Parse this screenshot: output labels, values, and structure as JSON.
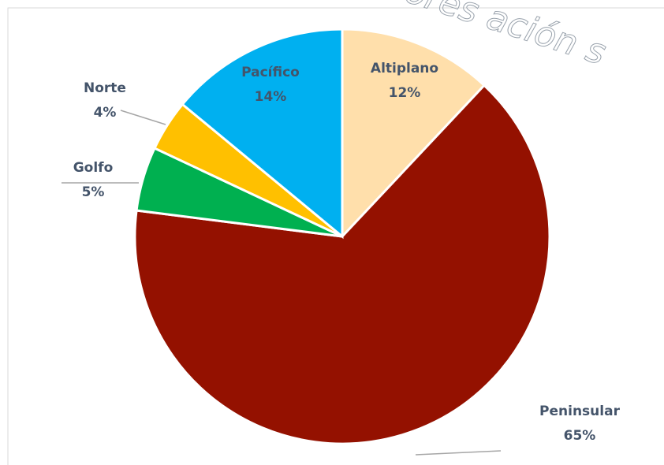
{
  "chart_data": {
    "type": "pie",
    "categories": [
      "Altiplano",
      "Peninsular",
      "Golfo",
      "Norte",
      "Pacífico"
    ],
    "values": [
      12,
      65,
      5,
      4,
      14
    ],
    "value_labels": [
      "12%",
      "65%",
      "5%",
      "4%",
      "14%"
    ],
    "colors": [
      "#ffdfab",
      "#941100",
      "#00b050",
      "#ffc000",
      "#00b0f0"
    ],
    "watermark": "ores  ación s"
  }
}
